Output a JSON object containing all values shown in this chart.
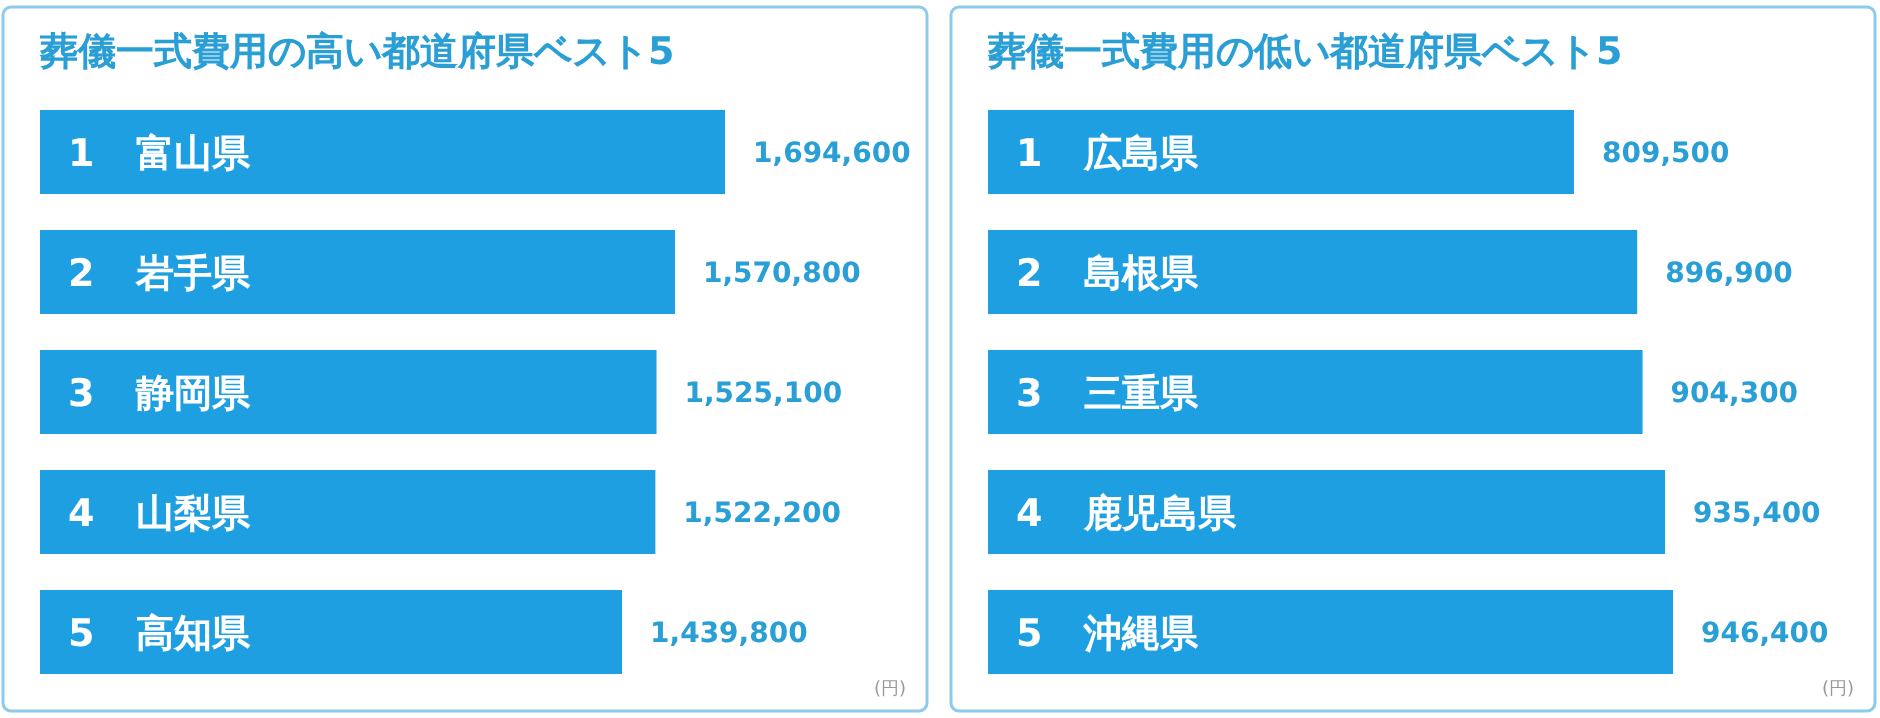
{
  "chart_data": [
    {
      "type": "bar",
      "orientation": "horizontal",
      "title": "葬儀一式費用の高い都道府県ベスト5",
      "categories": [
        "1 富山県",
        "2 岩手県",
        "3 静岡県",
        "4 山梨県",
        "5 高知県"
      ],
      "values": [
        1694600,
        1570800,
        1525100,
        1522200,
        1439800
      ],
      "value_labels": [
        "1,694,600",
        "1,570,800",
        "1,525,100",
        "1,522,200",
        "1,439,800"
      ],
      "color": "#1e9fe2",
      "annotations": [
        "(円)"
      ]
    },
    {
      "type": "bar",
      "orientation": "horizontal",
      "title": "葬儀一式費用の低い都道府県ベスト5",
      "categories": [
        "1 広島県",
        "2 島根県",
        "3 三重県",
        "4 鹿児島県",
        "5 沖縄県"
      ],
      "values": [
        809500,
        896900,
        904300,
        935400,
        946400
      ],
      "value_labels": [
        "809,500",
        "896,900",
        "904,300",
        "935,400",
        "946,400"
      ],
      "color": "#1e9fe2",
      "annotations": [
        "(円)"
      ]
    }
  ]
}
